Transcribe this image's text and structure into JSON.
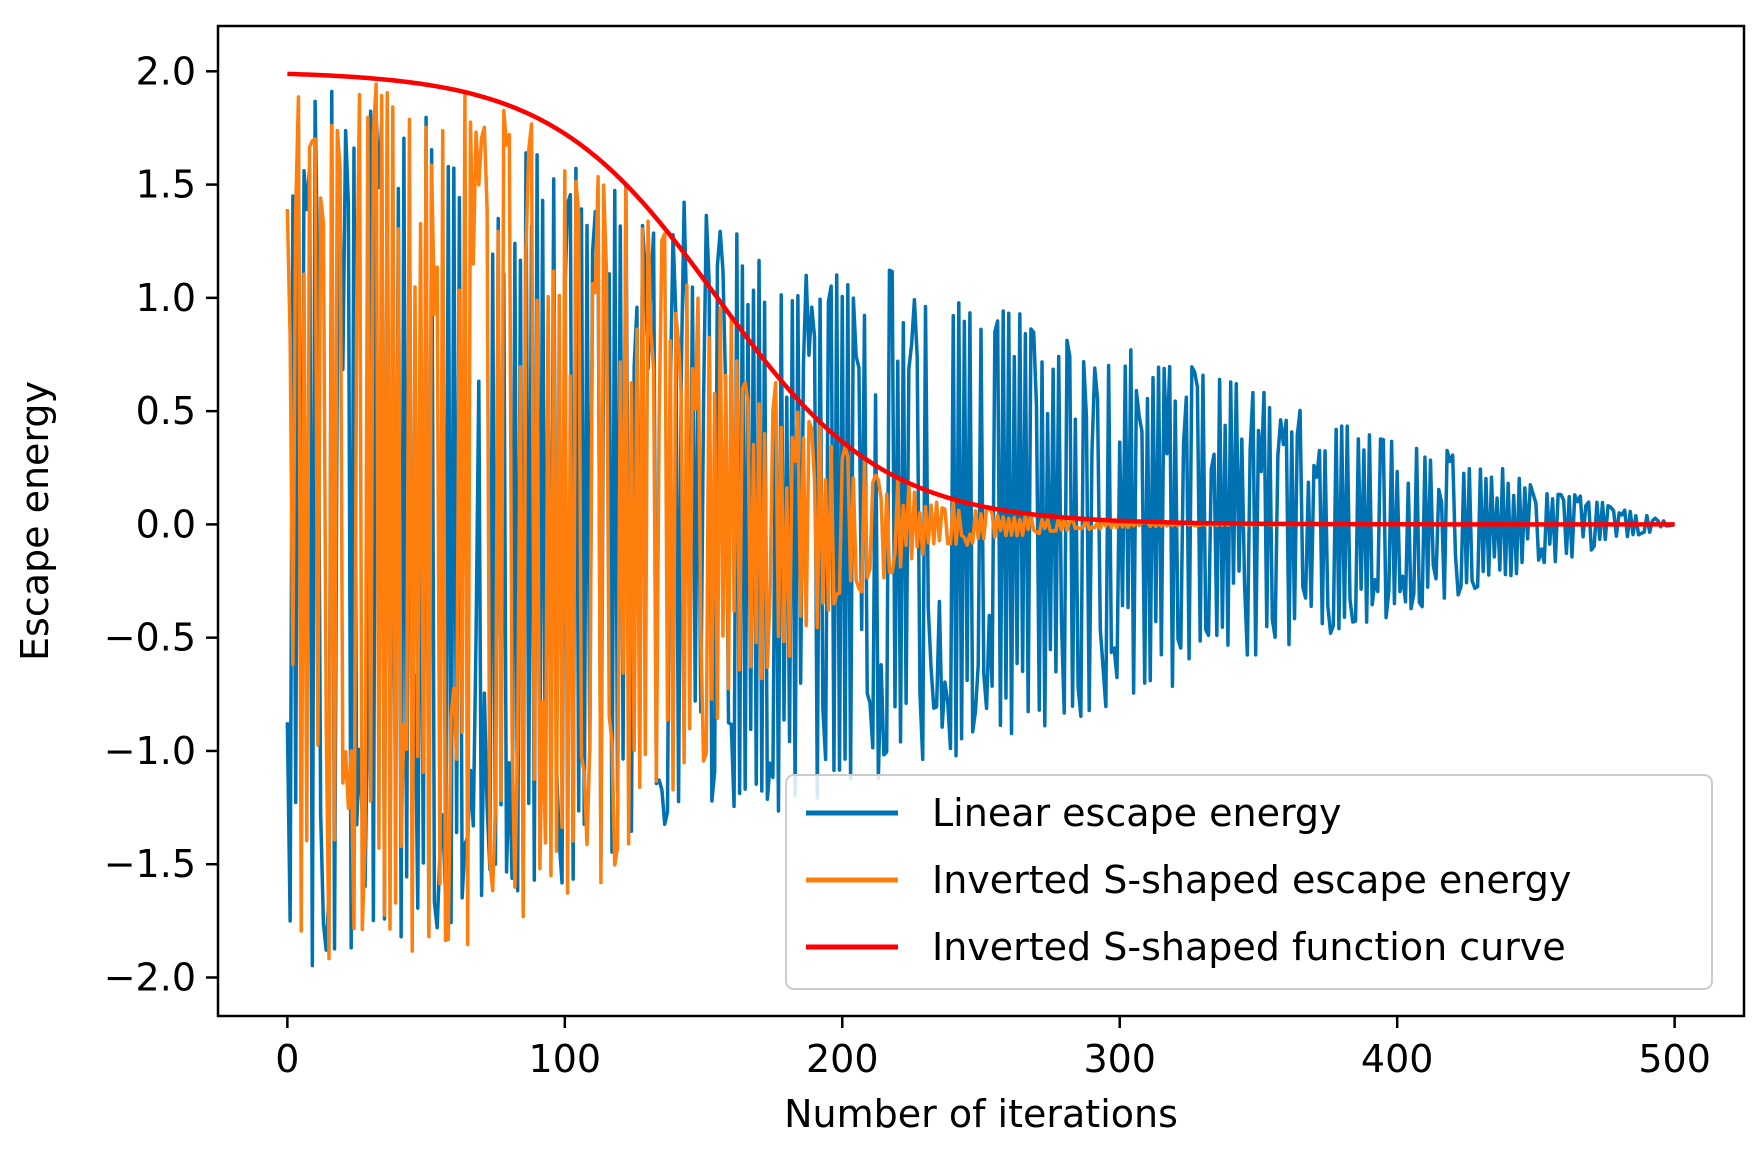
{
  "chart_data": {
    "type": "line",
    "title": "",
    "xlabel": "Number of iterations",
    "ylabel": "Escape energy",
    "xlim": [
      -25,
      525
    ],
    "ylim": [
      -2.17,
      2.2
    ],
    "xticks": [
      0,
      100,
      200,
      300,
      400,
      500
    ],
    "xtick_labels": [
      "0",
      "100",
      "200",
      "300",
      "400",
      "500"
    ],
    "yticks": [
      2.0,
      1.5,
      1.0,
      0.5,
      0.0,
      -0.5,
      -1.0,
      -1.5,
      -2.0
    ],
    "ytick_labels": [
      "2.0",
      "1.5",
      "1.0",
      "0.5",
      "0.0",
      "−0.5",
      "−1.0",
      "−1.5",
      "−2.0"
    ],
    "grid": false,
    "legend_position": "lower-right",
    "n_iterations": 500,
    "series": [
      {
        "name": "Linear escape energy",
        "color": "#0072b2",
        "kind": "oscillating",
        "envelope": "linear",
        "max_amplitude": 2.0,
        "seed": 7
      },
      {
        "name": "Inverted S-shaped escape energy",
        "color": "#ff7f0e",
        "kind": "oscillating",
        "envelope": "inverted-s",
        "max_amplitude": 2.0,
        "seed": 13
      },
      {
        "name": "Inverted S-shaped function curve",
        "color": "#ff0000",
        "kind": "curve",
        "function": "2 / (1 + exp((t - 155) / 30))",
        "midpoint": 155,
        "scale": 30,
        "max_amplitude": 2.0
      }
    ]
  }
}
